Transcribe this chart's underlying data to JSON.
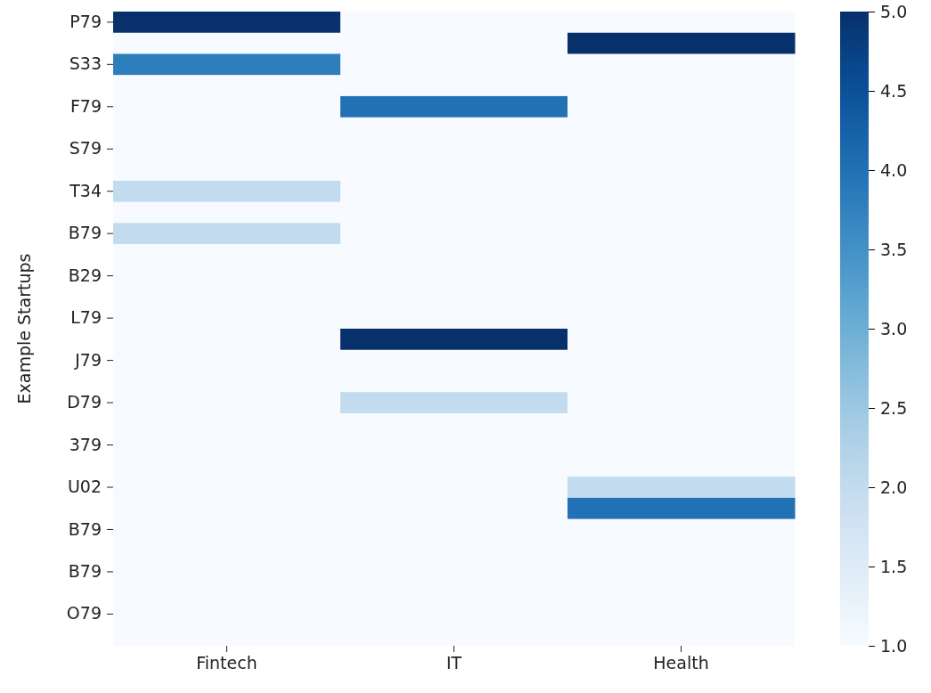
{
  "chart_data": {
    "type": "heatmap",
    "ylabel": "Example Startups",
    "categories": [
      "Fintech",
      "IT",
      "Health"
    ],
    "y_categories": [
      "P79",
      null,
      "S33",
      null,
      "F79",
      null,
      "S79",
      null,
      "T34",
      null,
      "B79",
      null,
      "B29",
      null,
      "L79",
      null,
      "J79",
      null,
      "D79",
      null,
      "379",
      null,
      "U02",
      null,
      "B79",
      null,
      "B79",
      null,
      "O79",
      null
    ],
    "cells": [
      [
        5,
        1,
        1
      ],
      [
        1,
        1,
        5
      ],
      [
        3.8,
        1,
        1
      ],
      [
        1,
        1,
        1
      ],
      [
        1,
        4,
        1
      ],
      [
        1,
        1,
        1
      ],
      [
        1,
        1,
        1
      ],
      [
        1,
        1,
        1
      ],
      [
        2,
        1,
        1
      ],
      [
        1,
        1,
        1
      ],
      [
        2,
        1,
        1
      ],
      [
        1,
        1,
        1
      ],
      [
        1,
        1,
        1
      ],
      [
        1,
        1,
        1
      ],
      [
        1,
        1,
        1
      ],
      [
        1,
        5,
        1
      ],
      [
        1,
        1,
        1
      ],
      [
        1,
        1,
        1
      ],
      [
        1,
        2,
        1
      ],
      [
        1,
        1,
        1
      ],
      [
        1,
        1,
        1
      ],
      [
        1,
        1,
        1
      ],
      [
        1,
        1,
        2
      ],
      [
        1,
        1,
        4
      ],
      [
        1,
        1,
        1
      ],
      [
        1,
        1,
        1
      ],
      [
        1,
        1,
        1
      ],
      [
        1,
        1,
        1
      ],
      [
        1,
        1,
        1
      ],
      [
        1,
        1,
        1
      ]
    ],
    "clim": [
      1,
      5
    ],
    "cticks": [
      {
        "value": 1,
        "label": "1.0"
      },
      {
        "value": 1.5,
        "label": "1.5"
      },
      {
        "value": 2,
        "label": "2.0"
      },
      {
        "value": 2.5,
        "label": "2.5"
      },
      {
        "value": 3,
        "label": "3.0"
      },
      {
        "value": 3.5,
        "label": "3.5"
      },
      {
        "value": 4,
        "label": "4.0"
      },
      {
        "value": 4.5,
        "label": "4.5"
      },
      {
        "value": 5,
        "label": "5.0"
      }
    ]
  }
}
